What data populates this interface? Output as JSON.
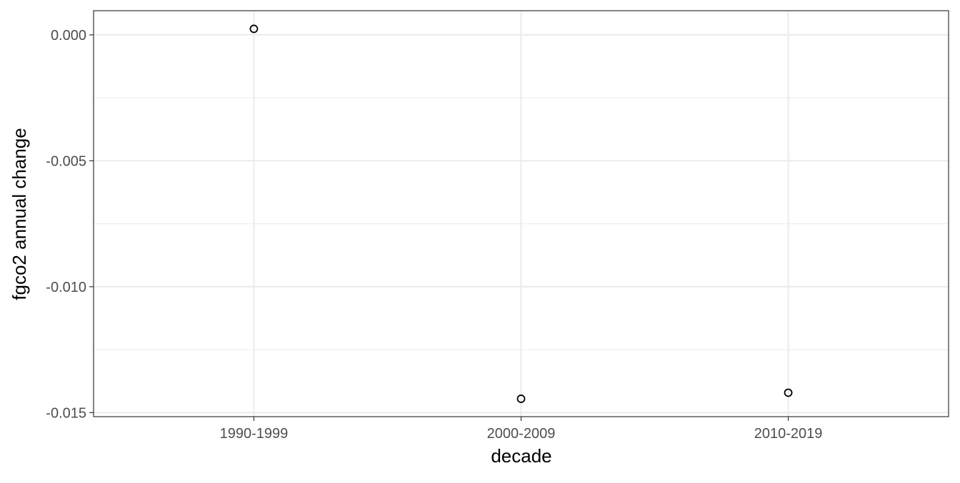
{
  "chart_data": {
    "type": "scatter",
    "xlabel": "decade",
    "ylabel": "fgco2 annual change",
    "categories": [
      "1990-1999",
      "2000-2009",
      "2010-2019"
    ],
    "values": [
      0.00024,
      -0.01445,
      -0.01421
    ],
    "ylim": [
      -0.01516,
      0.00096
    ],
    "yticks": [
      0.0,
      -0.005,
      -0.01,
      -0.015
    ],
    "ytick_labels": [
      "0.000",
      "-0.005",
      "-0.010",
      "-0.015"
    ],
    "grid": true,
    "theme": "bw",
    "colors": {
      "point": "#000000",
      "grid": "#ebebeb",
      "border": "#333333",
      "tick_text": "#4d4d4d"
    }
  }
}
